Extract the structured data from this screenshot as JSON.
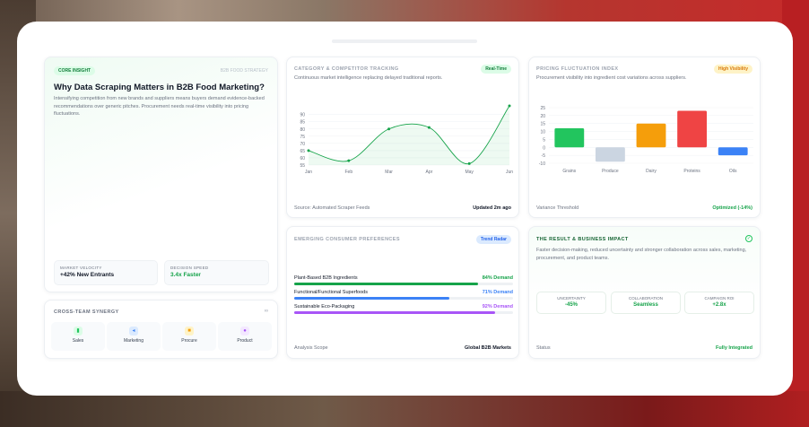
{
  "insight": {
    "tag": "CORE INSIGHT",
    "corner": "B2B FOOD STRATEGY",
    "title": "Why Data Scraping Matters in B2B Food Marketing?",
    "body": "Intensifying competition from new brands and suppliers means buyers demand evidence-backed recommendations over generic pitches. Procurement needs real-time visibility into pricing fluctuations.",
    "stats": [
      {
        "label": "MARKET VELOCITY",
        "value": "+42% New Entrants"
      },
      {
        "label": "DECISION SPEED",
        "value": "3.4x Faster"
      }
    ]
  },
  "synergy": {
    "title": "CROSS-TEAM SYNERGY",
    "items": [
      {
        "label": "Sales",
        "icon": "chart-icon",
        "color": "#22c55e"
      },
      {
        "label": "Marketing",
        "icon": "megaphone-icon",
        "color": "#3b82f6"
      },
      {
        "label": "Procure",
        "icon": "box-icon",
        "color": "#f59e0b"
      },
      {
        "label": "Product",
        "icon": "flask-icon",
        "color": "#a855f7"
      }
    ]
  },
  "tracking": {
    "title": "CATEGORY & COMPETITOR TRACKING",
    "badge": "Real-Time",
    "subtitle": "Continuous market intelligence replacing delayed traditional reports.",
    "foot_label": "Source: Automated Scraper Feeds",
    "foot_value": "Updated 2m ago"
  },
  "pricing": {
    "title": "PRICING FLUCTUATION INDEX",
    "badge": "High Visibility",
    "subtitle": "Procurement visibility into ingredient cost variations across suppliers.",
    "foot_label": "Variance Threshold",
    "foot_value": "Optimized (-14%)"
  },
  "preferences": {
    "title": "EMERGING CONSUMER PREFERENCES",
    "badge": "Trend Radar",
    "items": [
      {
        "label": "Plant-Based B2B Ingredients",
        "value": "84% Demand",
        "pct": 0.84,
        "color": "#16a34a"
      },
      {
        "label": "Functional/Functional Superfoods",
        "value": "71% Demand",
        "pct": 0.71,
        "color": "#3b82f6"
      },
      {
        "label": "Sustainable Eco-Packaging",
        "value": "92% Demand",
        "pct": 0.92,
        "color": "#a855f7"
      }
    ],
    "foot_label": "Analysis Scope",
    "foot_value": "Global B2B Markets"
  },
  "impact": {
    "title": "THE RESULT & BUSINESS IMPACT",
    "body": "Faster decision-making, reduced uncertainty and stronger collaboration across sales, marketing, procurement, and product teams.",
    "stats": [
      {
        "label": "UNCERTAINTY",
        "value": "-45%"
      },
      {
        "label": "COLLABORATION",
        "value": "Seamless"
      },
      {
        "label": "CAMPAIGN ROI",
        "value": "+2.8x"
      }
    ],
    "foot_label": "Status",
    "foot_value": "Fully Integrated"
  },
  "chart_data": [
    {
      "type": "line",
      "categories": [
        "Jan",
        "Feb",
        "Mar",
        "Apr",
        "May",
        "Jun"
      ],
      "values": [
        65,
        58,
        80,
        81,
        56,
        96
      ],
      "yticks": [
        55,
        60,
        65,
        70,
        75,
        80,
        85,
        90
      ],
      "ylim": [
        55,
        96
      ],
      "color": "#16a34a",
      "grid": true
    },
    {
      "type": "bar",
      "categories": [
        "Grains",
        "Produce",
        "Dairy",
        "Proteins",
        "Oils"
      ],
      "values": [
        12,
        -9,
        15,
        23,
        -5
      ],
      "colors": [
        "#22c55e",
        "#cbd5e1",
        "#f59e0b",
        "#ef4444",
        "#3b82f6"
      ],
      "yticks": [
        25,
        20,
        15,
        10,
        5,
        0,
        -5,
        -10
      ],
      "ylim": [
        -10,
        25
      ],
      "grid": true
    }
  ]
}
